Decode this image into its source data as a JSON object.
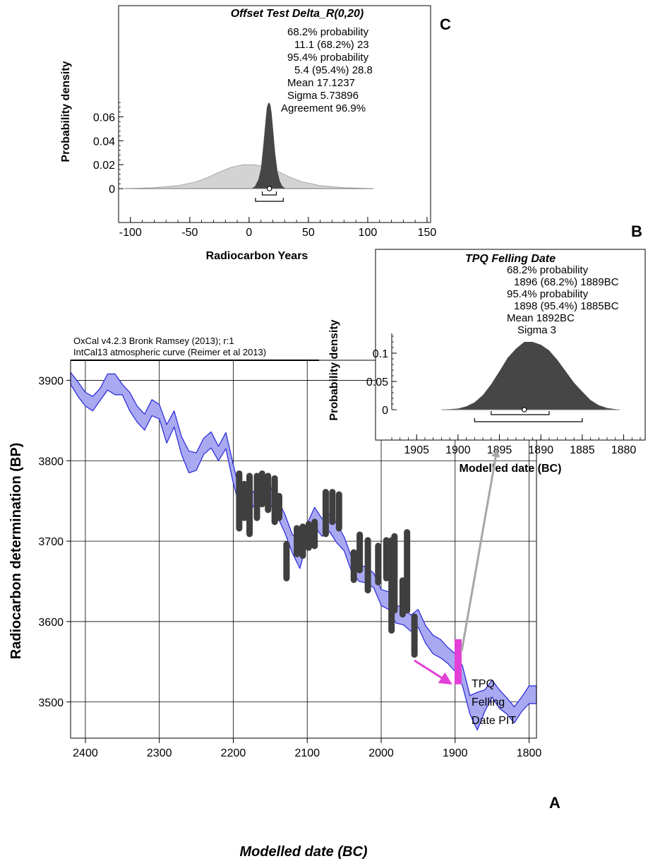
{
  "colors": {
    "curve_fill": "#a9a9f2",
    "curve_line": "#2424d8",
    "bar": "#3f3f3f",
    "pit": "#e23fd6",
    "arrow": "#a6a6a6",
    "prior": "#d3d3d3",
    "posterior": "#464646"
  },
  "panels": {
    "a": {
      "letter": "A",
      "header1": "OxCal v4.2.3 Bronk Ramsey (2013); r:1",
      "header2": "IntCal13 atmospheric curve (Reimer et al 2013)",
      "pit_label": [
        "TPQ",
        "Felling",
        "Date PIT"
      ]
    },
    "b": {
      "letter": "B"
    },
    "c": {
      "letter": "C"
    }
  },
  "chart_data": [
    {
      "id": "A",
      "type": "area",
      "xlabel": "Modelled date (BC)",
      "ylabel": "Radiocarbon determination (BP)",
      "xlim": [
        2420,
        1790
      ],
      "ylim": [
        3455,
        3925
      ],
      "x_ticks": [
        2400,
        2300,
        2200,
        2100,
        2000,
        1900,
        1800
      ],
      "y_ticks": [
        3500,
        3600,
        3700,
        3800,
        3900
      ],
      "grid": true,
      "calibration_curve": {
        "name": "IntCal13",
        "x": [
          2420,
          2410,
          2400,
          2390,
          2380,
          2370,
          2360,
          2350,
          2340,
          2330,
          2320,
          2310,
          2300,
          2290,
          2280,
          2270,
          2260,
          2250,
          2240,
          2230,
          2220,
          2210,
          2200,
          2190,
          2180,
          2170,
          2160,
          2150,
          2140,
          2130,
          2120,
          2110,
          2100,
          2090,
          2080,
          2070,
          2060,
          2050,
          2040,
          2030,
          2020,
          2010,
          2000,
          1990,
          1980,
          1970,
          1960,
          1950,
          1940,
          1930,
          1920,
          1910,
          1900,
          1890,
          1880,
          1870,
          1860,
          1850,
          1840,
          1830,
          1820,
          1810,
          1800,
          1790
        ],
        "upper": [
          3910,
          3898,
          3885,
          3880,
          3890,
          3908,
          3908,
          3895,
          3885,
          3868,
          3858,
          3876,
          3870,
          3845,
          3862,
          3830,
          3812,
          3810,
          3828,
          3836,
          3818,
          3835,
          3795,
          3758,
          3750,
          3766,
          3785,
          3768,
          3752,
          3733,
          3708,
          3700,
          3722,
          3742,
          3728,
          3734,
          3722,
          3705,
          3680,
          3670,
          3668,
          3660,
          3640,
          3637,
          3620,
          3618,
          3608,
          3615,
          3595,
          3583,
          3578,
          3568,
          3560,
          3545,
          3508,
          3512,
          3515,
          3527,
          3515,
          3505,
          3494,
          3506,
          3520,
          3520
        ],
        "lower": [
          3895,
          3880,
          3868,
          3862,
          3875,
          3888,
          3882,
          3882,
          3862,
          3848,
          3838,
          3856,
          3852,
          3822,
          3842,
          3808,
          3785,
          3788,
          3808,
          3816,
          3800,
          3815,
          3772,
          3738,
          3732,
          3748,
          3762,
          3746,
          3730,
          3710,
          3685,
          3666,
          3700,
          3718,
          3706,
          3712,
          3698,
          3688,
          3662,
          3650,
          3648,
          3642,
          3620,
          3615,
          3598,
          3596,
          3588,
          3593,
          3573,
          3560,
          3555,
          3548,
          3538,
          3520,
          3485,
          3465,
          3488,
          3506,
          3492,
          3485,
          3474,
          3488,
          3498,
          3498
        ]
      },
      "measurements": [
        {
          "x": 2192,
          "low": 3712,
          "high": 3788
        },
        {
          "x": 2185,
          "low": 3725,
          "high": 3775
        },
        {
          "x": 2178,
          "low": 3705,
          "high": 3785
        },
        {
          "x": 2168,
          "low": 3725,
          "high": 3785
        },
        {
          "x": 2161,
          "low": 3742,
          "high": 3788
        },
        {
          "x": 2153,
          "low": 3735,
          "high": 3785
        },
        {
          "x": 2144,
          "low": 3720,
          "high": 3782
        },
        {
          "x": 2138,
          "low": 3725,
          "high": 3760
        },
        {
          "x": 2128,
          "low": 3650,
          "high": 3700
        },
        {
          "x": 2114,
          "low": 3680,
          "high": 3720
        },
        {
          "x": 2106,
          "low": 3678,
          "high": 3722
        },
        {
          "x": 2098,
          "low": 3688,
          "high": 3725
        },
        {
          "x": 2090,
          "low": 3690,
          "high": 3728
        },
        {
          "x": 2075,
          "low": 3705,
          "high": 3765
        },
        {
          "x": 2066,
          "low": 3720,
          "high": 3765
        },
        {
          "x": 2057,
          "low": 3712,
          "high": 3762
        },
        {
          "x": 2037,
          "low": 3648,
          "high": 3690
        },
        {
          "x": 2029,
          "low": 3660,
          "high": 3712
        },
        {
          "x": 2018,
          "low": 3635,
          "high": 3705
        },
        {
          "x": 2004,
          "low": 3645,
          "high": 3698
        },
        {
          "x": 1993,
          "low": 3650,
          "high": 3705
        },
        {
          "x": 1986,
          "low": 3585,
          "high": 3705
        },
        {
          "x": 1982,
          "low": 3610,
          "high": 3710
        },
        {
          "x": 1971,
          "low": 3605,
          "high": 3655
        },
        {
          "x": 1965,
          "low": 3610,
          "high": 3715
        },
        {
          "x": 1955,
          "low": 3555,
          "high": 3610
        }
      ],
      "tpq_felling_date_pit": {
        "x": 1896,
        "low": 3522,
        "high": 3578
      }
    },
    {
      "id": "B",
      "type": "area",
      "title": "TPQ Felling Date",
      "xlabel": "Modelled date (BC)",
      "ylabel": "Probability density",
      "xlim": [
        1908,
        1878
      ],
      "ylim": [
        0,
        0.135
      ],
      "x_ticks": [
        1905,
        1900,
        1895,
        1890,
        1885,
        1880
      ],
      "y_ticks": [
        0,
        0.05,
        0.1
      ],
      "y_tick_labels": [
        "0",
        "0.05",
        "0.1"
      ],
      "distribution": {
        "x": [
          1902,
          1900,
          1899,
          1898,
          1897,
          1896,
          1895,
          1894,
          1893,
          1892,
          1891,
          1890,
          1889,
          1888,
          1887,
          1886,
          1885,
          1884,
          1883,
          1882,
          1881,
          1880.5
        ],
        "y": [
          0,
          0.002,
          0.006,
          0.013,
          0.026,
          0.045,
          0.068,
          0.092,
          0.108,
          0.12,
          0.12,
          0.115,
          0.105,
          0.088,
          0.068,
          0.048,
          0.032,
          0.017,
          0.008,
          0.003,
          0.001,
          0
        ]
      },
      "range_68": [
        1896,
        1889
      ],
      "range_95": [
        1898,
        1885
      ],
      "mean_value": 1892,
      "stats": {
        "line1": "68.2% probability",
        "line2": "1896 (68.2%) 1889BC",
        "line3": "95.4% probability",
        "line4": "1898 (95.4%) 1885BC",
        "mean": "Mean 1892BC",
        "sigma": "Sigma 3"
      }
    },
    {
      "id": "C",
      "type": "area",
      "title": "Offset Test Delta_R(0,20)",
      "xlabel": "Radiocarbon Years",
      "ylabel": "Probability density",
      "xlim": [
        -110,
        153
      ],
      "ylim": [
        0,
        0.075
      ],
      "x_ticks": [
        -100,
        -50,
        0,
        50,
        100,
        150
      ],
      "y_ticks": [
        0,
        0.02,
        0.04,
        0.06
      ],
      "y_tick_labels": [
        "0",
        "0.02",
        "0.04",
        "0.06"
      ],
      "prior": {
        "x": [
          -105,
          -80,
          -60,
          -45,
          -35,
          -25,
          -15,
          -5,
          0,
          5,
          15,
          25,
          35,
          45,
          60,
          80,
          105
        ],
        "y": [
          0,
          0.0007,
          0.0025,
          0.0056,
          0.0092,
          0.0139,
          0.0179,
          0.0199,
          0.02,
          0.0199,
          0.0181,
          0.0141,
          0.0093,
          0.0056,
          0.0025,
          0.0007,
          0
        ]
      },
      "posterior": {
        "x": [
          2,
          5,
          8,
          10,
          12,
          14,
          15,
          16,
          17,
          18,
          19,
          20,
          22,
          24,
          26,
          28,
          31
        ],
        "y": [
          0,
          0.002,
          0.008,
          0.017,
          0.036,
          0.058,
          0.068,
          0.071,
          0.072,
          0.07,
          0.063,
          0.052,
          0.03,
          0.014,
          0.006,
          0.002,
          0
        ]
      },
      "range_68": [
        11.1,
        23
      ],
      "range_95": [
        5.4,
        28.8
      ],
      "mean_value": 17.1237,
      "stats": {
        "line1": "68.2% probability",
        "line2": "11.1 (68.2%) 23",
        "line3": "95.4% probability",
        "line4": "5.4 (95.4%) 28.8",
        "mean": "Mean 17.1237",
        "sigma": "Sigma 5.73896",
        "agreement": "Agreement 96.9%"
      }
    }
  ]
}
